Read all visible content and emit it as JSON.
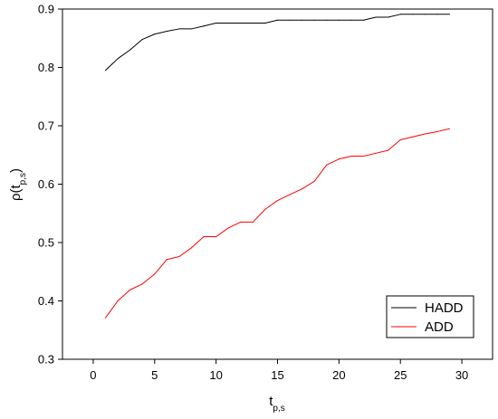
{
  "chart_data": {
    "type": "line",
    "title": "",
    "xlabel": {
      "main": "t",
      "sub": "p,s"
    },
    "ylabel": {
      "main": "ρ(t",
      "sub": "p,s",
      "close": ")"
    },
    "xlim": [
      -2.5,
      32.5
    ],
    "ylim": [
      0.3,
      0.9
    ],
    "xticks": [
      0,
      5,
      10,
      15,
      20,
      25,
      30
    ],
    "yticks": [
      0.3,
      0.4,
      0.5,
      0.6,
      0.7,
      0.8,
      0.9
    ],
    "xtick_labels": [
      "0",
      "5",
      "10",
      "15",
      "20",
      "25",
      "30"
    ],
    "ytick_labels": [
      "0.3",
      "0.4",
      "0.5",
      "0.6",
      "0.7",
      "0.8",
      "0.9"
    ],
    "grid": false,
    "legend_position": "bottom-right",
    "series": [
      {
        "name": "HADD",
        "color": "#000000",
        "x": [
          1,
          2,
          3,
          4,
          5,
          6,
          7,
          8,
          9,
          10,
          11,
          12,
          13,
          14,
          15,
          16,
          17,
          18,
          19,
          20,
          21,
          22,
          23,
          24,
          25,
          26,
          27,
          28,
          29
        ],
        "y": [
          0.795,
          0.815,
          0.83,
          0.848,
          0.857,
          0.862,
          0.866,
          0.866,
          0.871,
          0.876,
          0.876,
          0.876,
          0.876,
          0.876,
          0.881,
          0.881,
          0.881,
          0.881,
          0.881,
          0.881,
          0.881,
          0.881,
          0.886,
          0.886,
          0.891,
          0.891,
          0.891,
          0.891,
          0.891
        ]
      },
      {
        "name": "ADD",
        "color": "#ff0000",
        "x": [
          1,
          2,
          3,
          4,
          5,
          6,
          7,
          8,
          9,
          10,
          11,
          12,
          13,
          14,
          15,
          16,
          17,
          18,
          19,
          20,
          21,
          22,
          23,
          24,
          25,
          26,
          27,
          28,
          29
        ],
        "y": [
          0.371,
          0.4,
          0.419,
          0.429,
          0.446,
          0.471,
          0.476,
          0.491,
          0.51,
          0.51,
          0.525,
          0.535,
          0.535,
          0.557,
          0.572,
          0.582,
          0.592,
          0.605,
          0.633,
          0.643,
          0.648,
          0.648,
          0.653,
          0.658,
          0.676,
          0.681,
          0.686,
          0.69,
          0.695
        ]
      }
    ]
  }
}
